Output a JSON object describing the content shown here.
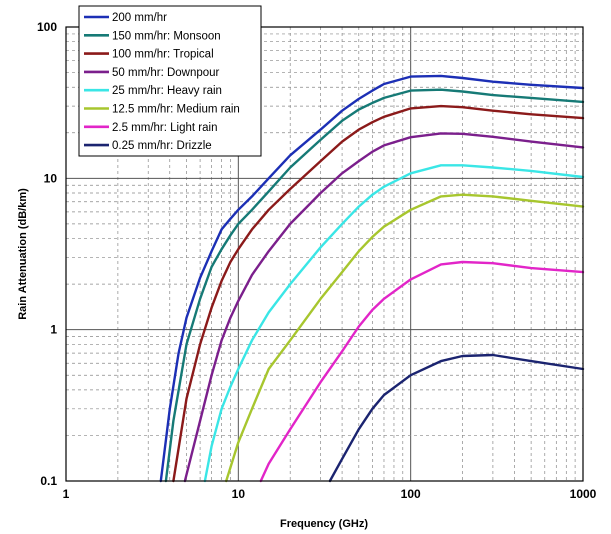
{
  "chart_data": {
    "type": "line",
    "title": "",
    "xlabel": "Frequency (GHz)",
    "ylabel": "Rain Attenuation (dB/km)",
    "x_scale": "log",
    "y_scale": "log",
    "xlim": [
      1,
      1000
    ],
    "ylim": [
      0.1,
      100
    ],
    "x_ticks": [
      "1",
      "10",
      "100",
      "1000"
    ],
    "y_ticks": [
      "0.1",
      "1",
      "10",
      "100"
    ],
    "grid": true,
    "grid_style": "major solid, minor dashed",
    "legend_position": "top-left",
    "series": [
      {
        "name": "200 mm/hr",
        "color": "#1c2fb5",
        "points": [
          [
            3.55,
            0.1
          ],
          [
            4,
            0.3
          ],
          [
            4.5,
            0.7
          ],
          [
            5,
            1.2
          ],
          [
            6,
            2.2
          ],
          [
            7,
            3.3
          ],
          [
            8,
            4.6
          ],
          [
            9,
            5.4
          ],
          [
            10,
            6.2
          ],
          [
            12,
            7.6
          ],
          [
            15,
            10
          ],
          [
            20,
            14.2
          ],
          [
            30,
            21
          ],
          [
            40,
            28
          ],
          [
            50,
            33.5
          ],
          [
            60,
            38
          ],
          [
            70,
            42
          ],
          [
            100,
            47
          ],
          [
            150,
            47.5
          ],
          [
            200,
            46
          ],
          [
            300,
            43.5
          ],
          [
            500,
            41.5
          ],
          [
            1000,
            39.5
          ]
        ]
      },
      {
        "name": "150 mm/hr: Monsoon",
        "color": "#167a76",
        "points": [
          [
            3.8,
            0.1
          ],
          [
            4.2,
            0.25
          ],
          [
            5,
            0.8
          ],
          [
            6,
            1.6
          ],
          [
            7,
            2.6
          ],
          [
            8,
            3.4
          ],
          [
            9,
            4.2
          ],
          [
            10,
            5
          ],
          [
            12,
            6.2
          ],
          [
            15,
            8.2
          ],
          [
            20,
            11.8
          ],
          [
            30,
            18
          ],
          [
            40,
            24
          ],
          [
            50,
            28.5
          ],
          [
            60,
            31.5
          ],
          [
            70,
            34
          ],
          [
            100,
            38
          ],
          [
            150,
            38.5
          ],
          [
            200,
            37.5
          ],
          [
            300,
            35.5
          ],
          [
            500,
            34
          ],
          [
            1000,
            32
          ]
        ]
      },
      {
        "name": "100 mm/hr: Tropical",
        "color": "#8b1a1a",
        "points": [
          [
            4.2,
            0.1
          ],
          [
            5,
            0.35
          ],
          [
            6,
            0.8
          ],
          [
            7,
            1.4
          ],
          [
            8,
            2.1
          ],
          [
            9,
            2.8
          ],
          [
            10,
            3.4
          ],
          [
            12,
            4.6
          ],
          [
            15,
            6.2
          ],
          [
            20,
            8.5
          ],
          [
            30,
            13
          ],
          [
            40,
            17.5
          ],
          [
            50,
            21
          ],
          [
            60,
            23.5
          ],
          [
            70,
            25.5
          ],
          [
            100,
            29
          ],
          [
            150,
            30
          ],
          [
            200,
            29.5
          ],
          [
            300,
            28
          ],
          [
            500,
            26.5
          ],
          [
            1000,
            25
          ]
        ]
      },
      {
        "name": "50 mm/hr: Downpour",
        "color": "#7b1f8c",
        "points": [
          [
            4.9,
            0.1
          ],
          [
            6,
            0.25
          ],
          [
            7,
            0.5
          ],
          [
            8,
            0.85
          ],
          [
            9,
            1.2
          ],
          [
            10,
            1.55
          ],
          [
            12,
            2.3
          ],
          [
            15,
            3.3
          ],
          [
            20,
            5
          ],
          [
            30,
            8
          ],
          [
            40,
            10.8
          ],
          [
            50,
            13
          ],
          [
            60,
            15
          ],
          [
            70,
            16.5
          ],
          [
            100,
            18.7
          ],
          [
            150,
            19.8
          ],
          [
            200,
            19.7
          ],
          [
            300,
            18.8
          ],
          [
            500,
            17.5
          ],
          [
            1000,
            16
          ]
        ]
      },
      {
        "name": "25 mm/hr: Heavy rain",
        "color": "#3ae6e6",
        "points": [
          [
            6.4,
            0.1
          ],
          [
            7,
            0.17
          ],
          [
            8,
            0.3
          ],
          [
            9,
            0.42
          ],
          [
            10,
            0.55
          ],
          [
            12,
            0.85
          ],
          [
            15,
            1.3
          ],
          [
            20,
            2
          ],
          [
            30,
            3.5
          ],
          [
            40,
            5
          ],
          [
            50,
            6.5
          ],
          [
            60,
            7.8
          ],
          [
            70,
            8.8
          ],
          [
            100,
            10.8
          ],
          [
            150,
            12.2
          ],
          [
            200,
            12.2
          ],
          [
            300,
            11.8
          ],
          [
            500,
            11.2
          ],
          [
            1000,
            10.2
          ]
        ]
      },
      {
        "name": "12.5 mm/hr: Medium rain",
        "color": "#a7c62e",
        "points": [
          [
            8.5,
            0.1
          ],
          [
            10,
            0.18
          ],
          [
            12,
            0.3
          ],
          [
            15,
            0.55
          ],
          [
            20,
            0.85
          ],
          [
            30,
            1.6
          ],
          [
            40,
            2.4
          ],
          [
            50,
            3.3
          ],
          [
            60,
            4.1
          ],
          [
            70,
            4.8
          ],
          [
            100,
            6.2
          ],
          [
            150,
            7.6
          ],
          [
            200,
            7.8
          ],
          [
            300,
            7.6
          ],
          [
            500,
            7.1
          ],
          [
            1000,
            6.5
          ]
        ]
      },
      {
        "name": "2.5 mm/hr: Light rain",
        "color": "#e225c8",
        "points": [
          [
            13.5,
            0.1
          ],
          [
            15,
            0.13
          ],
          [
            20,
            0.22
          ],
          [
            30,
            0.45
          ],
          [
            40,
            0.72
          ],
          [
            50,
            1.05
          ],
          [
            60,
            1.35
          ],
          [
            70,
            1.6
          ],
          [
            100,
            2.15
          ],
          [
            150,
            2.7
          ],
          [
            200,
            2.8
          ],
          [
            300,
            2.75
          ],
          [
            500,
            2.55
          ],
          [
            1000,
            2.4
          ]
        ]
      },
      {
        "name": "0.25 mm/hr: Drizzle",
        "color": "#1b2470",
        "points": [
          [
            34,
            0.1
          ],
          [
            40,
            0.14
          ],
          [
            50,
            0.22
          ],
          [
            60,
            0.3
          ],
          [
            70,
            0.37
          ],
          [
            100,
            0.5
          ],
          [
            150,
            0.62
          ],
          [
            200,
            0.67
          ],
          [
            300,
            0.68
          ],
          [
            500,
            0.62
          ],
          [
            1000,
            0.55
          ]
        ]
      }
    ]
  }
}
